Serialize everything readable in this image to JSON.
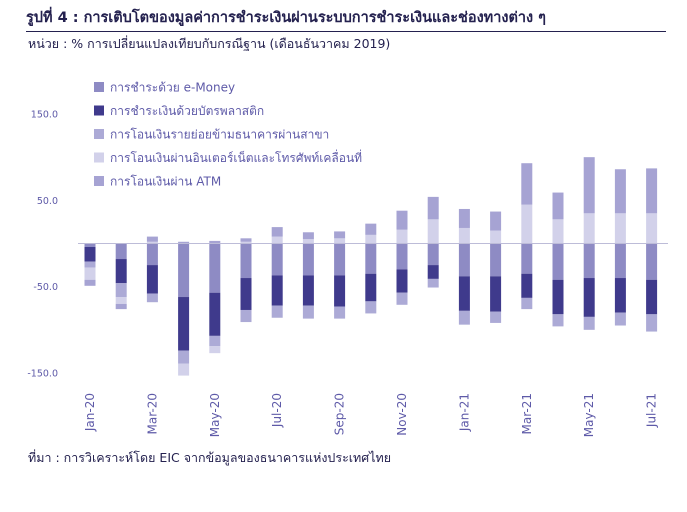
{
  "title": "รูปที่ 4 : การเติบโตของมูลค่าการชำระเงินผ่านระบบการชำระเงินและช่องทางต่าง ๆ",
  "unit_label": "หน่วย : % การเปลี่ยนแปลงเทียบกับกรณีฐาน (เดือนธันวาคม 2019)",
  "source": "ที่มา : การวิเคราะห์โดย EIC จากข้อมูลของธนาคารแห่งประเทศไทย",
  "chart_data": {
    "type": "bar",
    "stacked": true,
    "categories": [
      "Jan-20",
      "Feb-20",
      "Mar-20",
      "Apr-20",
      "May-20",
      "Jun-20",
      "Jul-20",
      "Aug-20",
      "Sep-20",
      "Oct-20",
      "Nov-20",
      "Dec-20",
      "Jan-21",
      "Feb-21",
      "Mar-21",
      "Apr-21",
      "May-21",
      "Jun-21",
      "Jul-21"
    ],
    "x_tick_labels": [
      "Jan-20",
      "Mar-20",
      "May-20",
      "Jul-20",
      "Sep-20",
      "Nov-20",
      "Jan-21",
      "Mar-21",
      "May-21",
      "Jul-21"
    ],
    "y_ticks": [
      150.0,
      50.0,
      -50.0,
      -150.0
    ],
    "y_tick_labels": [
      "150.0",
      "50.0",
      "-50.0",
      "-150.0"
    ],
    "ylim": [
      -155,
      160
    ],
    "grid": false,
    "legend_position": "top-left",
    "series": [
      {
        "name": "การชำระด้วย e-Money",
        "color": "#8e8bc4",
        "values": [
          -4,
          -18,
          -25,
          -62,
          -57,
          -40,
          -37,
          -37,
          -37,
          -35,
          -30,
          -25,
          -38,
          -38,
          -35,
          -42,
          -40,
          -40,
          -42
        ]
      },
      {
        "name": "การชำระเงินด้วยบัตรพลาสติก",
        "color": "#3f3a8c",
        "values": [
          -17,
          -28,
          -33,
          -62,
          -50,
          -37,
          -35,
          -35,
          -36,
          -32,
          -27,
          -16,
          -40,
          -41,
          -28,
          -40,
          -45,
          -40,
          -40
        ]
      },
      {
        "name": "การโอนเงินรายย่อยข้ามธนาคารผ่านสาขา",
        "color": "#acaad6",
        "values": [
          -7,
          -16,
          -10,
          -15,
          -12,
          -14,
          -14,
          -15,
          -14,
          -14,
          -14,
          -10,
          -16,
          -13,
          -13,
          -14,
          -15,
          -15,
          -20
        ]
      },
      {
        "name": "การโอนเงินผ่านอินเตอร์เน็ตและโทรศัพท์เคลื่อนที่",
        "color": "#d2d1ea",
        "values": [
          -14,
          -8,
          2,
          -14,
          -8,
          2,
          8,
          5,
          6,
          10,
          16,
          28,
          18,
          15,
          45,
          28,
          35,
          35,
          35
        ]
      },
      {
        "name": "การโอนเงินผ่าน ATM",
        "color": "#a6a3d3",
        "values": [
          -7,
          -6,
          6,
          2,
          3,
          4,
          11,
          8,
          8,
          13,
          22,
          26,
          22,
          22,
          48,
          31,
          65,
          51,
          52
        ]
      }
    ]
  }
}
